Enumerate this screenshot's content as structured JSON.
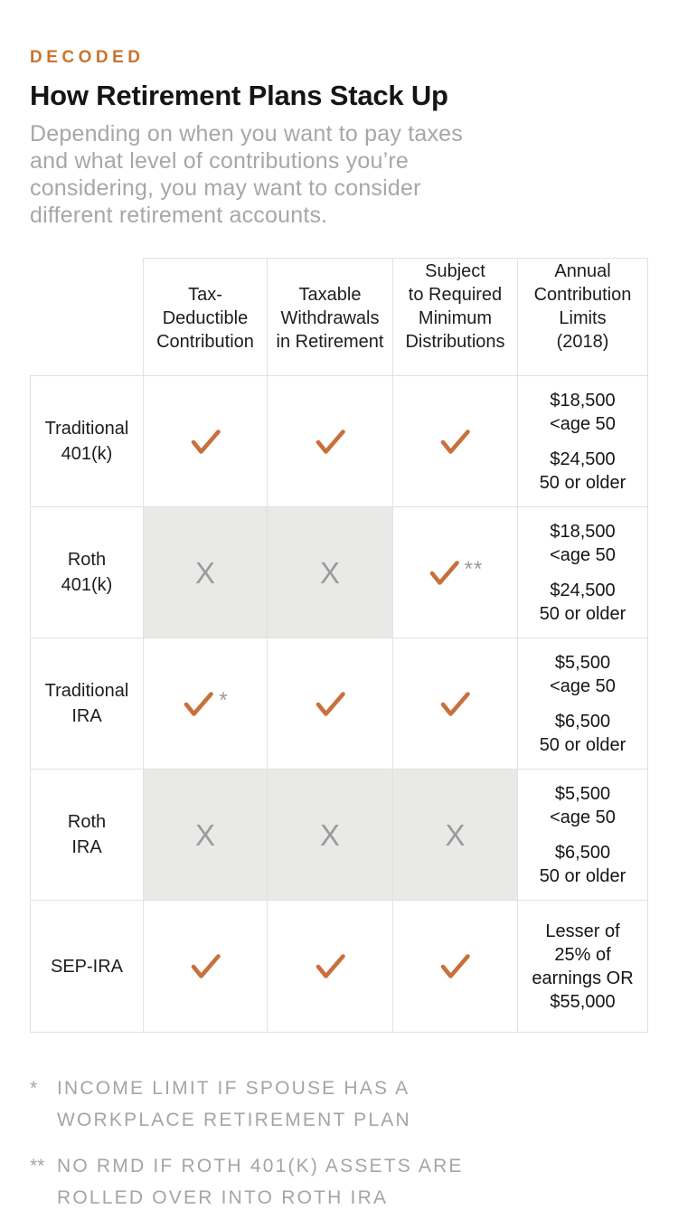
{
  "page": {
    "kicker": "DECODED",
    "title": "How Retirement Plans Stack Up",
    "subtitle": "Depending on when you want to pay taxes\nand what level of contributions you’re\nconsidering, you may want to consider\ndifferent retirement accounts."
  },
  "colors": {
    "accent_orange": "#c8742f",
    "check_orange": "#c8703c",
    "x_gray": "#9b9b9b",
    "shaded_cell": "#e9e9e8",
    "border": "#e1e1e0",
    "muted_text": "#a5a5a5",
    "ink": "#151515"
  },
  "symbols": {
    "check": "✓",
    "x": "X"
  },
  "table": {
    "column_headers": [
      "Tax-\nDeductible\nContribution",
      "Taxable\nWithdrawals\nin Retirement",
      "Subject\nto Required\nMinimum\nDistributions",
      "Annual\nContribution\nLimits\n(2018)"
    ],
    "rows": [
      {
        "label": "Traditional\n401(k)",
        "cells": [
          {
            "mark": "check",
            "note": "",
            "shaded": false
          },
          {
            "mark": "check",
            "note": "",
            "shaded": false
          },
          {
            "mark": "check",
            "note": "",
            "shaded": false
          }
        ],
        "limits": [
          "$18,500\n<age 50",
          "$24,500\n50 or older"
        ]
      },
      {
        "label": "Roth\n401(k)",
        "cells": [
          {
            "mark": "x",
            "note": "",
            "shaded": true
          },
          {
            "mark": "x",
            "note": "",
            "shaded": true
          },
          {
            "mark": "check",
            "note": "**",
            "shaded": false
          }
        ],
        "limits": [
          "$18,500\n<age 50",
          "$24,500\n50 or older"
        ]
      },
      {
        "label": "Traditional\nIRA",
        "cells": [
          {
            "mark": "check",
            "note": "*",
            "shaded": false
          },
          {
            "mark": "check",
            "note": "",
            "shaded": false
          },
          {
            "mark": "check",
            "note": "",
            "shaded": false
          }
        ],
        "limits": [
          "$5,500\n<age 50",
          "$6,500\n50 or older"
        ]
      },
      {
        "label": "Roth\nIRA",
        "cells": [
          {
            "mark": "x",
            "note": "",
            "shaded": true
          },
          {
            "mark": "x",
            "note": "",
            "shaded": true
          },
          {
            "mark": "x",
            "note": "",
            "shaded": true
          }
        ],
        "limits": [
          "$5,500\n<age 50",
          "$6,500\n50 or older"
        ]
      },
      {
        "label": "SEP-IRA",
        "cells": [
          {
            "mark": "check",
            "note": "",
            "shaded": false
          },
          {
            "mark": "check",
            "note": "",
            "shaded": false
          },
          {
            "mark": "check",
            "note": "",
            "shaded": false
          }
        ],
        "limits": [
          "Lesser of\n25% of\nearnings OR\n$55,000"
        ]
      }
    ]
  },
  "footnotes": [
    {
      "marker": "*",
      "text": "INCOME LIMIT IF SPOUSE HAS A\nWORKPLACE RETIREMENT PLAN"
    },
    {
      "marker": "**",
      "text": "NO RMD IF ROTH 401(K) ASSETS ARE\nROLLED OVER INTO ROTH IRA"
    }
  ],
  "chart_data": {
    "type": "table",
    "title": "How Retirement Plans Stack Up",
    "columns": [
      "Plan",
      "Tax-Deductible Contribution",
      "Taxable Withdrawals in Retirement",
      "Subject to Required Minimum Distributions",
      "Annual Contribution Limits (2018)"
    ],
    "rows": [
      [
        "Traditional 401(k)",
        "yes",
        "yes",
        "yes",
        "$18,500 <age 50; $24,500 50 or older"
      ],
      [
        "Roth 401(k)",
        "no",
        "no",
        "yes**",
        "$18,500 <age 50; $24,500 50 or older"
      ],
      [
        "Traditional IRA",
        "yes*",
        "yes",
        "yes",
        "$5,500 <age 50; $6,500 50 or older"
      ],
      [
        "Roth IRA",
        "no",
        "no",
        "no",
        "$5,500 <age 50; $6,500 50 or older"
      ],
      [
        "SEP-IRA",
        "yes",
        "yes",
        "yes",
        "Lesser of 25% of earnings OR $55,000"
      ]
    ],
    "legend": {
      "check": "applies (orange check)",
      "x": "does not apply (gray X on shaded cell)"
    },
    "footnotes": [
      "* Income limit if spouse has a workplace retirement plan",
      "** No RMD if Roth 401(k) assets are rolled over into Roth IRA"
    ]
  }
}
